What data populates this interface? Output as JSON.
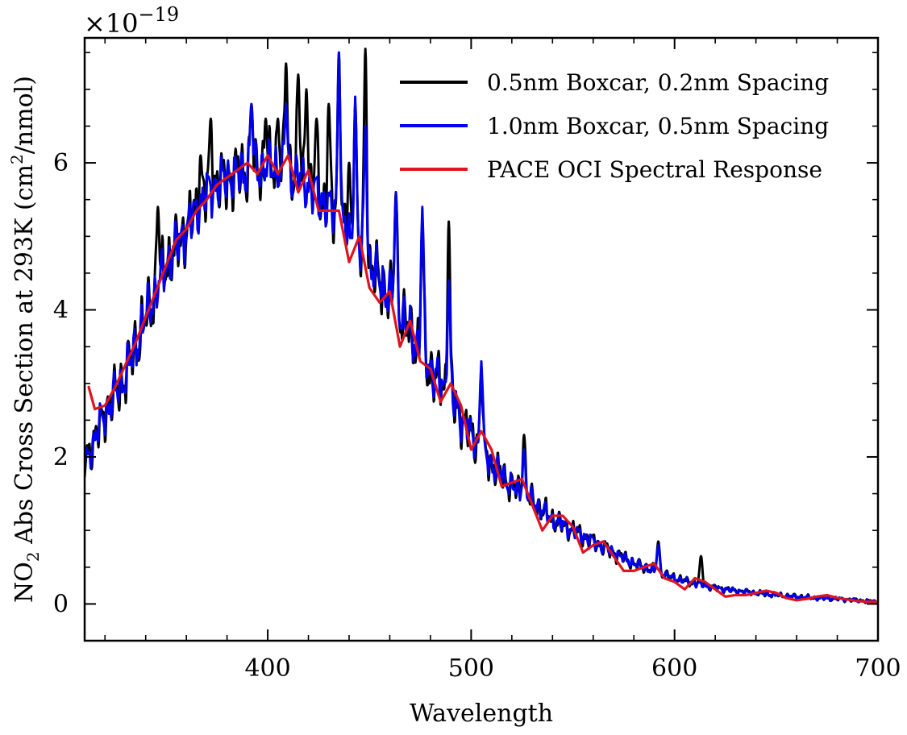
{
  "chart_data": {
    "type": "line",
    "title": "",
    "xlabel": "Wavelength",
    "ylabel_main": "NO",
    "ylabel_sub": "2",
    "ylabel_mid": " Abs Cross Section at 293K (cm",
    "ylabel_sup": "2",
    "ylabel_end": "/nmol)",
    "y_multiplier_base": "×10",
    "y_multiplier_exp": "−19",
    "xlim": [
      310,
      700
    ],
    "ylim": [
      -0.5,
      7.7
    ],
    "x_ticks": [
      400,
      500,
      600,
      700
    ],
    "x_tick_labels": [
      "400",
      "500",
      "600",
      "700"
    ],
    "y_ticks": [
      0,
      2,
      4,
      6
    ],
    "y_tick_labels": [
      "0",
      "2",
      "4",
      "6"
    ],
    "grid": false,
    "legend_position": "top-right",
    "series": [
      {
        "name": "0.5nm Boxcar, 0.2nm Spacing",
        "color": "#000000",
        "x_start": 310,
        "x_end": 700,
        "envelope": [
          [
            310,
            1.9
          ],
          [
            320,
            2.6
          ],
          [
            330,
            3.1
          ],
          [
            340,
            3.9
          ],
          [
            350,
            4.6
          ],
          [
            360,
            5.1
          ],
          [
            370,
            5.6
          ],
          [
            380,
            5.8
          ],
          [
            390,
            5.9
          ],
          [
            400,
            5.95
          ],
          [
            410,
            5.9
          ],
          [
            420,
            5.7
          ],
          [
            430,
            5.4
          ],
          [
            440,
            5.0
          ],
          [
            450,
            4.6
          ],
          [
            460,
            4.2
          ],
          [
            470,
            3.7
          ],
          [
            480,
            3.2
          ],
          [
            490,
            2.8
          ],
          [
            500,
            2.3
          ],
          [
            510,
            1.9
          ],
          [
            520,
            1.6
          ],
          [
            530,
            1.4
          ],
          [
            540,
            1.15
          ],
          [
            550,
            1.0
          ],
          [
            560,
            0.85
          ],
          [
            570,
            0.7
          ],
          [
            580,
            0.55
          ],
          [
            590,
            0.45
          ],
          [
            600,
            0.35
          ],
          [
            610,
            0.28
          ],
          [
            620,
            0.22
          ],
          [
            630,
            0.18
          ],
          [
            640,
            0.15
          ],
          [
            650,
            0.12
          ],
          [
            660,
            0.1
          ],
          [
            670,
            0.08
          ],
          [
            680,
            0.07
          ],
          [
            690,
            0.05
          ],
          [
            700,
            0.03
          ]
        ],
        "ripple": 0.9,
        "peaks": [
          [
            346,
            5.4
          ],
          [
            367,
            6.1
          ],
          [
            372,
            6.6
          ],
          [
            392,
            6.8
          ],
          [
            399,
            6.6
          ],
          [
            405,
            6.6
          ],
          [
            409,
            7.35
          ],
          [
            415,
            7.2
          ],
          [
            419,
            7.0
          ],
          [
            424,
            6.6
          ],
          [
            430,
            6.8
          ],
          [
            435,
            7.5
          ],
          [
            440,
            6.0
          ],
          [
            443,
            6.8
          ],
          [
            448,
            7.55
          ],
          [
            463,
            5.6
          ],
          [
            476,
            5.2
          ],
          [
            489,
            5.2
          ],
          [
            505,
            3.1
          ],
          [
            526,
            2.3
          ],
          [
            592,
            0.85
          ],
          [
            613,
            0.65
          ]
        ]
      },
      {
        "name": "1.0nm Boxcar, 0.5nm Spacing",
        "color": "#0000ee",
        "x_start": 310,
        "x_end": 700,
        "envelope": [
          [
            310,
            1.9
          ],
          [
            320,
            2.6
          ],
          [
            330,
            3.1
          ],
          [
            340,
            3.9
          ],
          [
            350,
            4.6
          ],
          [
            360,
            5.1
          ],
          [
            370,
            5.6
          ],
          [
            380,
            5.8
          ],
          [
            390,
            5.9
          ],
          [
            400,
            5.95
          ],
          [
            410,
            5.9
          ],
          [
            420,
            5.7
          ],
          [
            430,
            5.4
          ],
          [
            440,
            5.0
          ],
          [
            450,
            4.6
          ],
          [
            460,
            4.2
          ],
          [
            470,
            3.7
          ],
          [
            480,
            3.2
          ],
          [
            490,
            2.8
          ],
          [
            500,
            2.3
          ],
          [
            510,
            1.9
          ],
          [
            520,
            1.6
          ],
          [
            530,
            1.4
          ],
          [
            540,
            1.15
          ],
          [
            550,
            1.0
          ],
          [
            560,
            0.85
          ],
          [
            570,
            0.7
          ],
          [
            580,
            0.55
          ],
          [
            590,
            0.45
          ],
          [
            600,
            0.35
          ],
          [
            610,
            0.28
          ],
          [
            620,
            0.22
          ],
          [
            630,
            0.18
          ],
          [
            640,
            0.15
          ],
          [
            650,
            0.12
          ],
          [
            660,
            0.1
          ],
          [
            670,
            0.08
          ],
          [
            680,
            0.07
          ],
          [
            690,
            0.05
          ],
          [
            700,
            0.03
          ]
        ],
        "ripple": 0.75,
        "peaks": [
          [
            392,
            6.8
          ],
          [
            409,
            6.8
          ],
          [
            435,
            7.5
          ],
          [
            443,
            6.9
          ],
          [
            448,
            6.5
          ],
          [
            463,
            5.6
          ],
          [
            476,
            5.4
          ],
          [
            489,
            4.4
          ],
          [
            505,
            3.3
          ],
          [
            526,
            2.1
          ],
          [
            592,
            0.8
          ]
        ]
      },
      {
        "name": "PACE OCI Spectral Response",
        "color": "#e0141e",
        "x": [
          312,
          315,
          320,
          325,
          330,
          335,
          340,
          345,
          350,
          355,
          360,
          365,
          370,
          375,
          380,
          385,
          390,
          395,
          400,
          405,
          410,
          415,
          420,
          425,
          430,
          435,
          440,
          445,
          450,
          455,
          460,
          465,
          470,
          475,
          480,
          485,
          490,
          495,
          500,
          505,
          510,
          515,
          520,
          525,
          530,
          535,
          540,
          545,
          550,
          555,
          560,
          565,
          570,
          575,
          580,
          585,
          590,
          595,
          600,
          605,
          610,
          615,
          620,
          625,
          630,
          635,
          640,
          645,
          650,
          655,
          660,
          665,
          670,
          675,
          680,
          685,
          690,
          695,
          700
        ],
        "y": [
          2.95,
          2.65,
          2.7,
          2.95,
          3.25,
          3.55,
          3.9,
          4.25,
          4.6,
          4.95,
          5.1,
          5.35,
          5.5,
          5.7,
          5.8,
          5.9,
          6.0,
          5.85,
          6.1,
          5.85,
          6.1,
          5.6,
          5.9,
          5.35,
          5.35,
          5.35,
          4.65,
          5.0,
          4.3,
          4.1,
          4.25,
          3.5,
          3.85,
          3.3,
          3.2,
          2.75,
          3.0,
          2.7,
          2.1,
          2.35,
          2.1,
          1.6,
          1.65,
          1.7,
          1.35,
          1.0,
          1.2,
          1.2,
          1.05,
          0.7,
          0.8,
          0.85,
          0.65,
          0.45,
          0.45,
          0.5,
          0.55,
          0.35,
          0.3,
          0.2,
          0.35,
          0.3,
          0.2,
          0.1,
          0.12,
          0.12,
          0.15,
          0.18,
          0.15,
          0.08,
          0.05,
          0.07,
          0.1,
          0.12,
          0.08,
          0.06,
          0.04,
          0.03,
          0.03
        ]
      }
    ]
  }
}
